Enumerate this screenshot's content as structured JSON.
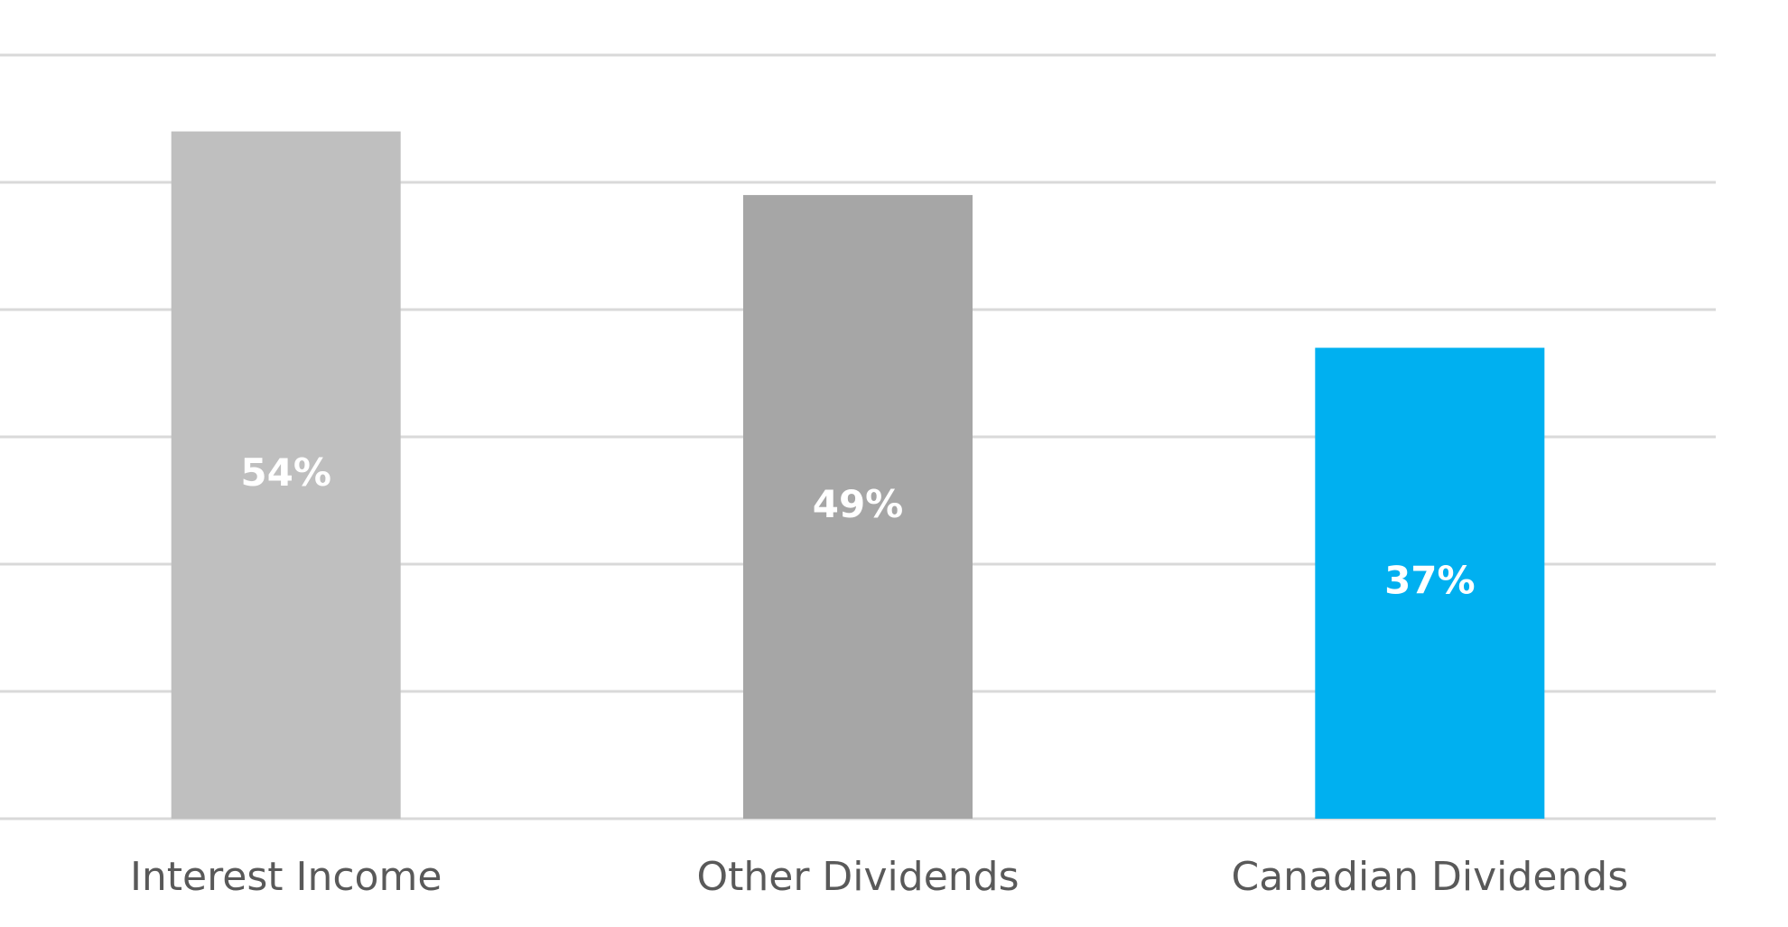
{
  "chart_data": {
    "type": "bar",
    "title": "",
    "xlabel": "",
    "ylabel": "",
    "categories": [
      "Interest Income",
      "Other Dividends",
      "Canadian Dividends"
    ],
    "values": [
      54,
      49,
      37
    ],
    "data_labels": [
      "54%",
      "49%",
      "37%"
    ],
    "unit": "%",
    "ylim": [
      0,
      60
    ],
    "gridline_step": 10,
    "grid": true,
    "legend": "none",
    "colors": [
      "#bfbfbf",
      "#a6a6a6",
      "#00b0f0"
    ]
  },
  "style": {
    "gridline_color": "#d9d9d9",
    "data_label_color": "#ffffff",
    "category_label_color": "#595959"
  }
}
